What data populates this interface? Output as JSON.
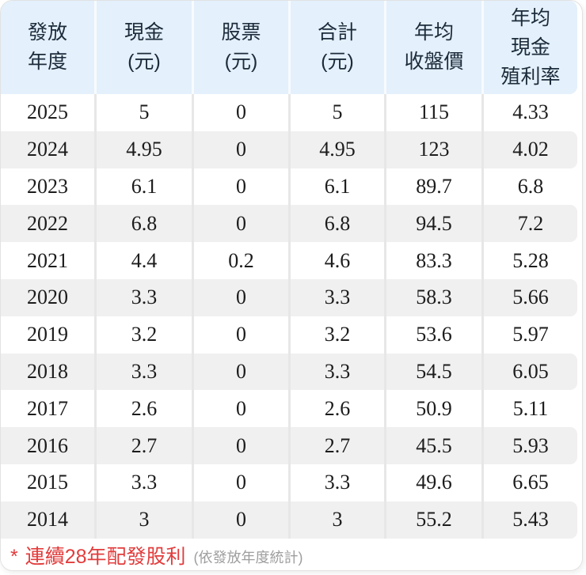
{
  "table": {
    "columns": [
      {
        "id": "year",
        "label_lines": [
          "發放",
          "年度"
        ]
      },
      {
        "id": "cash",
        "label_lines": [
          "現金",
          "(元)"
        ]
      },
      {
        "id": "stock",
        "label_lines": [
          "股票",
          "(元)"
        ]
      },
      {
        "id": "total",
        "label_lines": [
          "合計",
          "(元)"
        ]
      },
      {
        "id": "avg_close",
        "label_lines": [
          "年均",
          "收盤價"
        ]
      },
      {
        "id": "avg_yield",
        "label_lines": [
          "年均",
          "現金",
          "殖利率"
        ]
      }
    ],
    "rows": [
      {
        "year": "2025",
        "cash": "5",
        "stock": "0",
        "total": "5",
        "avg_close": "115",
        "avg_yield": "4.33"
      },
      {
        "year": "2024",
        "cash": "4.95",
        "stock": "0",
        "total": "4.95",
        "avg_close": "123",
        "avg_yield": "4.02"
      },
      {
        "year": "2023",
        "cash": "6.1",
        "stock": "0",
        "total": "6.1",
        "avg_close": "89.7",
        "avg_yield": "6.8"
      },
      {
        "year": "2022",
        "cash": "6.8",
        "stock": "0",
        "total": "6.8",
        "avg_close": "94.5",
        "avg_yield": "7.2"
      },
      {
        "year": "2021",
        "cash": "4.4",
        "stock": "0.2",
        "total": "4.6",
        "avg_close": "83.3",
        "avg_yield": "5.28"
      },
      {
        "year": "2020",
        "cash": "3.3",
        "stock": "0",
        "total": "3.3",
        "avg_close": "58.3",
        "avg_yield": "5.66"
      },
      {
        "year": "2019",
        "cash": "3.2",
        "stock": "0",
        "total": "3.2",
        "avg_close": "53.6",
        "avg_yield": "5.97"
      },
      {
        "year": "2018",
        "cash": "3.3",
        "stock": "0",
        "total": "3.3",
        "avg_close": "54.5",
        "avg_yield": "6.05"
      },
      {
        "year": "2017",
        "cash": "2.6",
        "stock": "0",
        "total": "2.6",
        "avg_close": "50.9",
        "avg_yield": "5.11"
      },
      {
        "year": "2016",
        "cash": "2.7",
        "stock": "0",
        "total": "2.7",
        "avg_close": "45.5",
        "avg_yield": "5.93"
      },
      {
        "year": "2015",
        "cash": "3.3",
        "stock": "0",
        "total": "3.3",
        "avg_close": "49.6",
        "avg_yield": "6.65"
      },
      {
        "year": "2014",
        "cash": "3",
        "stock": "0",
        "total": "3",
        "avg_close": "55.2",
        "avg_yield": "5.43"
      }
    ]
  },
  "footnote": {
    "marker": "*",
    "highlight": "連續28年配發股利",
    "note": "(依發放年度統計)"
  },
  "colors": {
    "header_bg": "#e4f0fb",
    "stripe_bg": "#f0f0f0",
    "header_divider": "#f7fbff",
    "body_divider": "#e7e7e7",
    "header_text": "#1c2b3a",
    "body_text": "#1c1c1c",
    "footnote_red": "#e23c3c",
    "footnote_gray": "#9e9e9e",
    "card_border": "#e2e2e2"
  }
}
